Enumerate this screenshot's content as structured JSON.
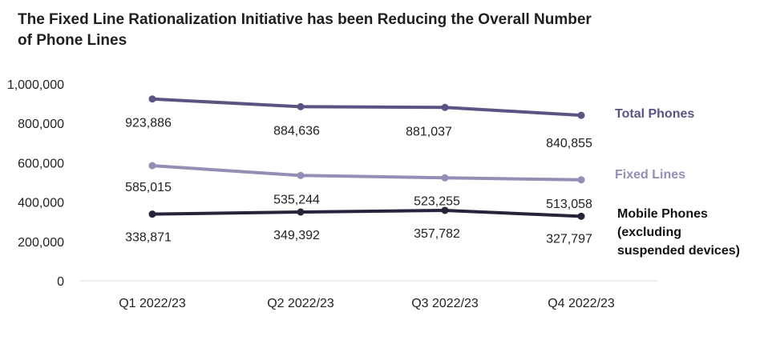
{
  "title": "The Fixed Line Rationalization Initiative has been Reducing the Overall Number of Phone Lines",
  "chart_data": {
    "type": "line",
    "title": "The Fixed Line Rationalization Initiative has been Reducing the Overall Number of Phone Lines",
    "xlabel": "",
    "ylabel": "",
    "categories": [
      "Q1 2022/23",
      "Q2 2022/23",
      "Q3 2022/23",
      "Q4 2022/23"
    ],
    "ylim": [
      0,
      1000000
    ],
    "yticks": [
      0,
      200000,
      400000,
      600000,
      800000,
      1000000
    ],
    "ytick_labels": [
      "0",
      "200,000",
      "400,000",
      "600,000",
      "800,000",
      "1,000,000"
    ],
    "grid": false,
    "legend": "inline-right",
    "series": [
      {
        "name": "Total Phones",
        "name_lines": [
          "Total Phones"
        ],
        "color": "#5b5382",
        "values": [
          923886,
          884636,
          881037,
          840855
        ],
        "value_labels": [
          "923,886",
          "884,636",
          "881,037",
          "840,855"
        ]
      },
      {
        "name": "Fixed Lines",
        "name_lines": [
          "Fixed Lines"
        ],
        "color": "#958db5",
        "values": [
          585015,
          535244,
          523255,
          513058
        ],
        "value_labels": [
          "585,015",
          "535,244",
          "523,255",
          "513,058"
        ]
      },
      {
        "name": "Mobile Phones (excluding suspended devices)",
        "name_lines": [
          "Mobile Phones",
          "(excluding",
          "suspended devices)"
        ],
        "color": "#26233a",
        "label_color": "#111111",
        "values": [
          338871,
          349392,
          357782,
          327797
        ],
        "value_labels": [
          "338,871",
          "349,392",
          "357,782",
          "327,797"
        ]
      }
    ]
  }
}
